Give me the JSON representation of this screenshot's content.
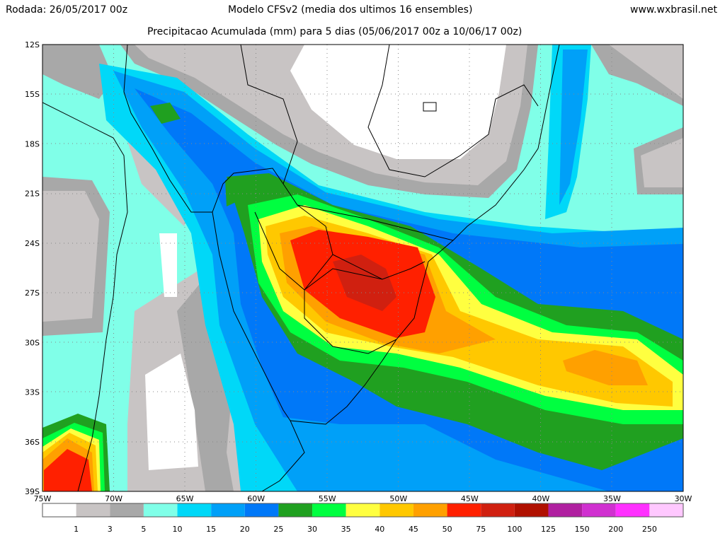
{
  "header": {
    "run": "Rodada: 26/05/2017 00z",
    "model": "Modelo CFSv2 (media dos ultimos 16 ensembles)",
    "site": "www.wxbrasil.net",
    "title": "Precipitacao Acumulada (mm) para 5 dias (05/06/2017 00z a 10/06/17 00z)"
  },
  "axes": {
    "lat_labels": [
      "12S",
      "15S",
      "18S",
      "21S",
      "24S",
      "27S",
      "30S",
      "33S",
      "36S",
      "39S"
    ],
    "lon_labels": [
      "75W",
      "70W",
      "65W",
      "60W",
      "55W",
      "50W",
      "45W",
      "40W",
      "35W",
      "30W"
    ]
  },
  "legend": {
    "colors": [
      "#ffffff",
      "#c8c4c4",
      "#a8a8a8",
      "#80ffe8",
      "#00d8f8",
      "#00a0f8",
      "#0078f8",
      "#20a020",
      "#00ff40",
      "#ffff40",
      "#ffc800",
      "#ffa000",
      "#ff2000",
      "#d02010",
      "#b01000",
      "#b020a0",
      "#d030d0",
      "#ff30ff",
      "#ffc8ff"
    ],
    "labels": [
      "1",
      "3",
      "5",
      "10",
      "15",
      "20",
      "25",
      "30",
      "35",
      "40",
      "45",
      "50",
      "75",
      "100",
      "125",
      "150",
      "200",
      "250"
    ]
  }
}
